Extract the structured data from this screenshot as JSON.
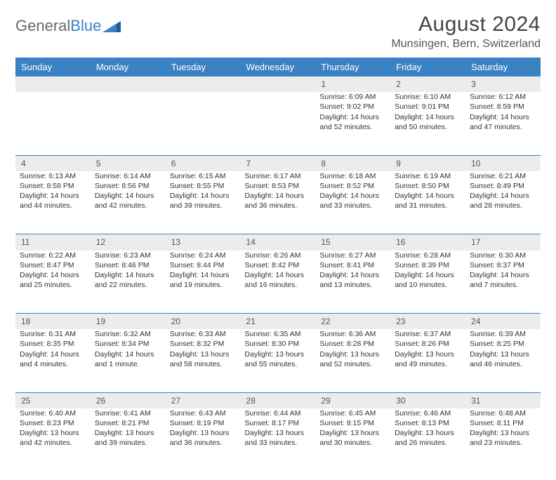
{
  "brand": {
    "part1": "General",
    "part2": "Blue"
  },
  "title": "August 2024",
  "subtitle": "Munsingen, Bern, Switzerland",
  "colors": {
    "header_bg": "#3b82c4",
    "header_text": "#ffffff",
    "daynum_bg": "#ececec",
    "text": "#333333",
    "brand_gray": "#6a6a6a",
    "brand_blue": "#3b82c4"
  },
  "weekdays": [
    "Sunday",
    "Monday",
    "Tuesday",
    "Wednesday",
    "Thursday",
    "Friday",
    "Saturday"
  ],
  "weeks": [
    {
      "nums": [
        "",
        "",
        "",
        "",
        "1",
        "2",
        "3"
      ],
      "cells": [
        {
          "sunrise": "",
          "sunset": "",
          "daylight": ""
        },
        {
          "sunrise": "",
          "sunset": "",
          "daylight": ""
        },
        {
          "sunrise": "",
          "sunset": "",
          "daylight": ""
        },
        {
          "sunrise": "",
          "sunset": "",
          "daylight": ""
        },
        {
          "sunrise": "Sunrise: 6:09 AM",
          "sunset": "Sunset: 9:02 PM",
          "daylight": "Daylight: 14 hours and 52 minutes."
        },
        {
          "sunrise": "Sunrise: 6:10 AM",
          "sunset": "Sunset: 9:01 PM",
          "daylight": "Daylight: 14 hours and 50 minutes."
        },
        {
          "sunrise": "Sunrise: 6:12 AM",
          "sunset": "Sunset: 8:59 PM",
          "daylight": "Daylight: 14 hours and 47 minutes."
        }
      ]
    },
    {
      "nums": [
        "4",
        "5",
        "6",
        "7",
        "8",
        "9",
        "10"
      ],
      "cells": [
        {
          "sunrise": "Sunrise: 6:13 AM",
          "sunset": "Sunset: 8:58 PM",
          "daylight": "Daylight: 14 hours and 44 minutes."
        },
        {
          "sunrise": "Sunrise: 6:14 AM",
          "sunset": "Sunset: 8:56 PM",
          "daylight": "Daylight: 14 hours and 42 minutes."
        },
        {
          "sunrise": "Sunrise: 6:15 AM",
          "sunset": "Sunset: 8:55 PM",
          "daylight": "Daylight: 14 hours and 39 minutes."
        },
        {
          "sunrise": "Sunrise: 6:17 AM",
          "sunset": "Sunset: 8:53 PM",
          "daylight": "Daylight: 14 hours and 36 minutes."
        },
        {
          "sunrise": "Sunrise: 6:18 AM",
          "sunset": "Sunset: 8:52 PM",
          "daylight": "Daylight: 14 hours and 33 minutes."
        },
        {
          "sunrise": "Sunrise: 6:19 AM",
          "sunset": "Sunset: 8:50 PM",
          "daylight": "Daylight: 14 hours and 31 minutes."
        },
        {
          "sunrise": "Sunrise: 6:21 AM",
          "sunset": "Sunset: 8:49 PM",
          "daylight": "Daylight: 14 hours and 28 minutes."
        }
      ]
    },
    {
      "nums": [
        "11",
        "12",
        "13",
        "14",
        "15",
        "16",
        "17"
      ],
      "cells": [
        {
          "sunrise": "Sunrise: 6:22 AM",
          "sunset": "Sunset: 8:47 PM",
          "daylight": "Daylight: 14 hours and 25 minutes."
        },
        {
          "sunrise": "Sunrise: 6:23 AM",
          "sunset": "Sunset: 8:46 PM",
          "daylight": "Daylight: 14 hours and 22 minutes."
        },
        {
          "sunrise": "Sunrise: 6:24 AM",
          "sunset": "Sunset: 8:44 PM",
          "daylight": "Daylight: 14 hours and 19 minutes."
        },
        {
          "sunrise": "Sunrise: 6:26 AM",
          "sunset": "Sunset: 8:42 PM",
          "daylight": "Daylight: 14 hours and 16 minutes."
        },
        {
          "sunrise": "Sunrise: 6:27 AM",
          "sunset": "Sunset: 8:41 PM",
          "daylight": "Daylight: 14 hours and 13 minutes."
        },
        {
          "sunrise": "Sunrise: 6:28 AM",
          "sunset": "Sunset: 8:39 PM",
          "daylight": "Daylight: 14 hours and 10 minutes."
        },
        {
          "sunrise": "Sunrise: 6:30 AM",
          "sunset": "Sunset: 8:37 PM",
          "daylight": "Daylight: 14 hours and 7 minutes."
        }
      ]
    },
    {
      "nums": [
        "18",
        "19",
        "20",
        "21",
        "22",
        "23",
        "24"
      ],
      "cells": [
        {
          "sunrise": "Sunrise: 6:31 AM",
          "sunset": "Sunset: 8:35 PM",
          "daylight": "Daylight: 14 hours and 4 minutes."
        },
        {
          "sunrise": "Sunrise: 6:32 AM",
          "sunset": "Sunset: 8:34 PM",
          "daylight": "Daylight: 14 hours and 1 minute."
        },
        {
          "sunrise": "Sunrise: 6:33 AM",
          "sunset": "Sunset: 8:32 PM",
          "daylight": "Daylight: 13 hours and 58 minutes."
        },
        {
          "sunrise": "Sunrise: 6:35 AM",
          "sunset": "Sunset: 8:30 PM",
          "daylight": "Daylight: 13 hours and 55 minutes."
        },
        {
          "sunrise": "Sunrise: 6:36 AM",
          "sunset": "Sunset: 8:28 PM",
          "daylight": "Daylight: 13 hours and 52 minutes."
        },
        {
          "sunrise": "Sunrise: 6:37 AM",
          "sunset": "Sunset: 8:26 PM",
          "daylight": "Daylight: 13 hours and 49 minutes."
        },
        {
          "sunrise": "Sunrise: 6:39 AM",
          "sunset": "Sunset: 8:25 PM",
          "daylight": "Daylight: 13 hours and 46 minutes."
        }
      ]
    },
    {
      "nums": [
        "25",
        "26",
        "27",
        "28",
        "29",
        "30",
        "31"
      ],
      "cells": [
        {
          "sunrise": "Sunrise: 6:40 AM",
          "sunset": "Sunset: 8:23 PM",
          "daylight": "Daylight: 13 hours and 42 minutes."
        },
        {
          "sunrise": "Sunrise: 6:41 AM",
          "sunset": "Sunset: 8:21 PM",
          "daylight": "Daylight: 13 hours and 39 minutes."
        },
        {
          "sunrise": "Sunrise: 6:43 AM",
          "sunset": "Sunset: 8:19 PM",
          "daylight": "Daylight: 13 hours and 36 minutes."
        },
        {
          "sunrise": "Sunrise: 6:44 AM",
          "sunset": "Sunset: 8:17 PM",
          "daylight": "Daylight: 13 hours and 33 minutes."
        },
        {
          "sunrise": "Sunrise: 6:45 AM",
          "sunset": "Sunset: 8:15 PM",
          "daylight": "Daylight: 13 hours and 30 minutes."
        },
        {
          "sunrise": "Sunrise: 6:46 AM",
          "sunset": "Sunset: 8:13 PM",
          "daylight": "Daylight: 13 hours and 26 minutes."
        },
        {
          "sunrise": "Sunrise: 6:48 AM",
          "sunset": "Sunset: 8:11 PM",
          "daylight": "Daylight: 13 hours and 23 minutes."
        }
      ]
    }
  ]
}
